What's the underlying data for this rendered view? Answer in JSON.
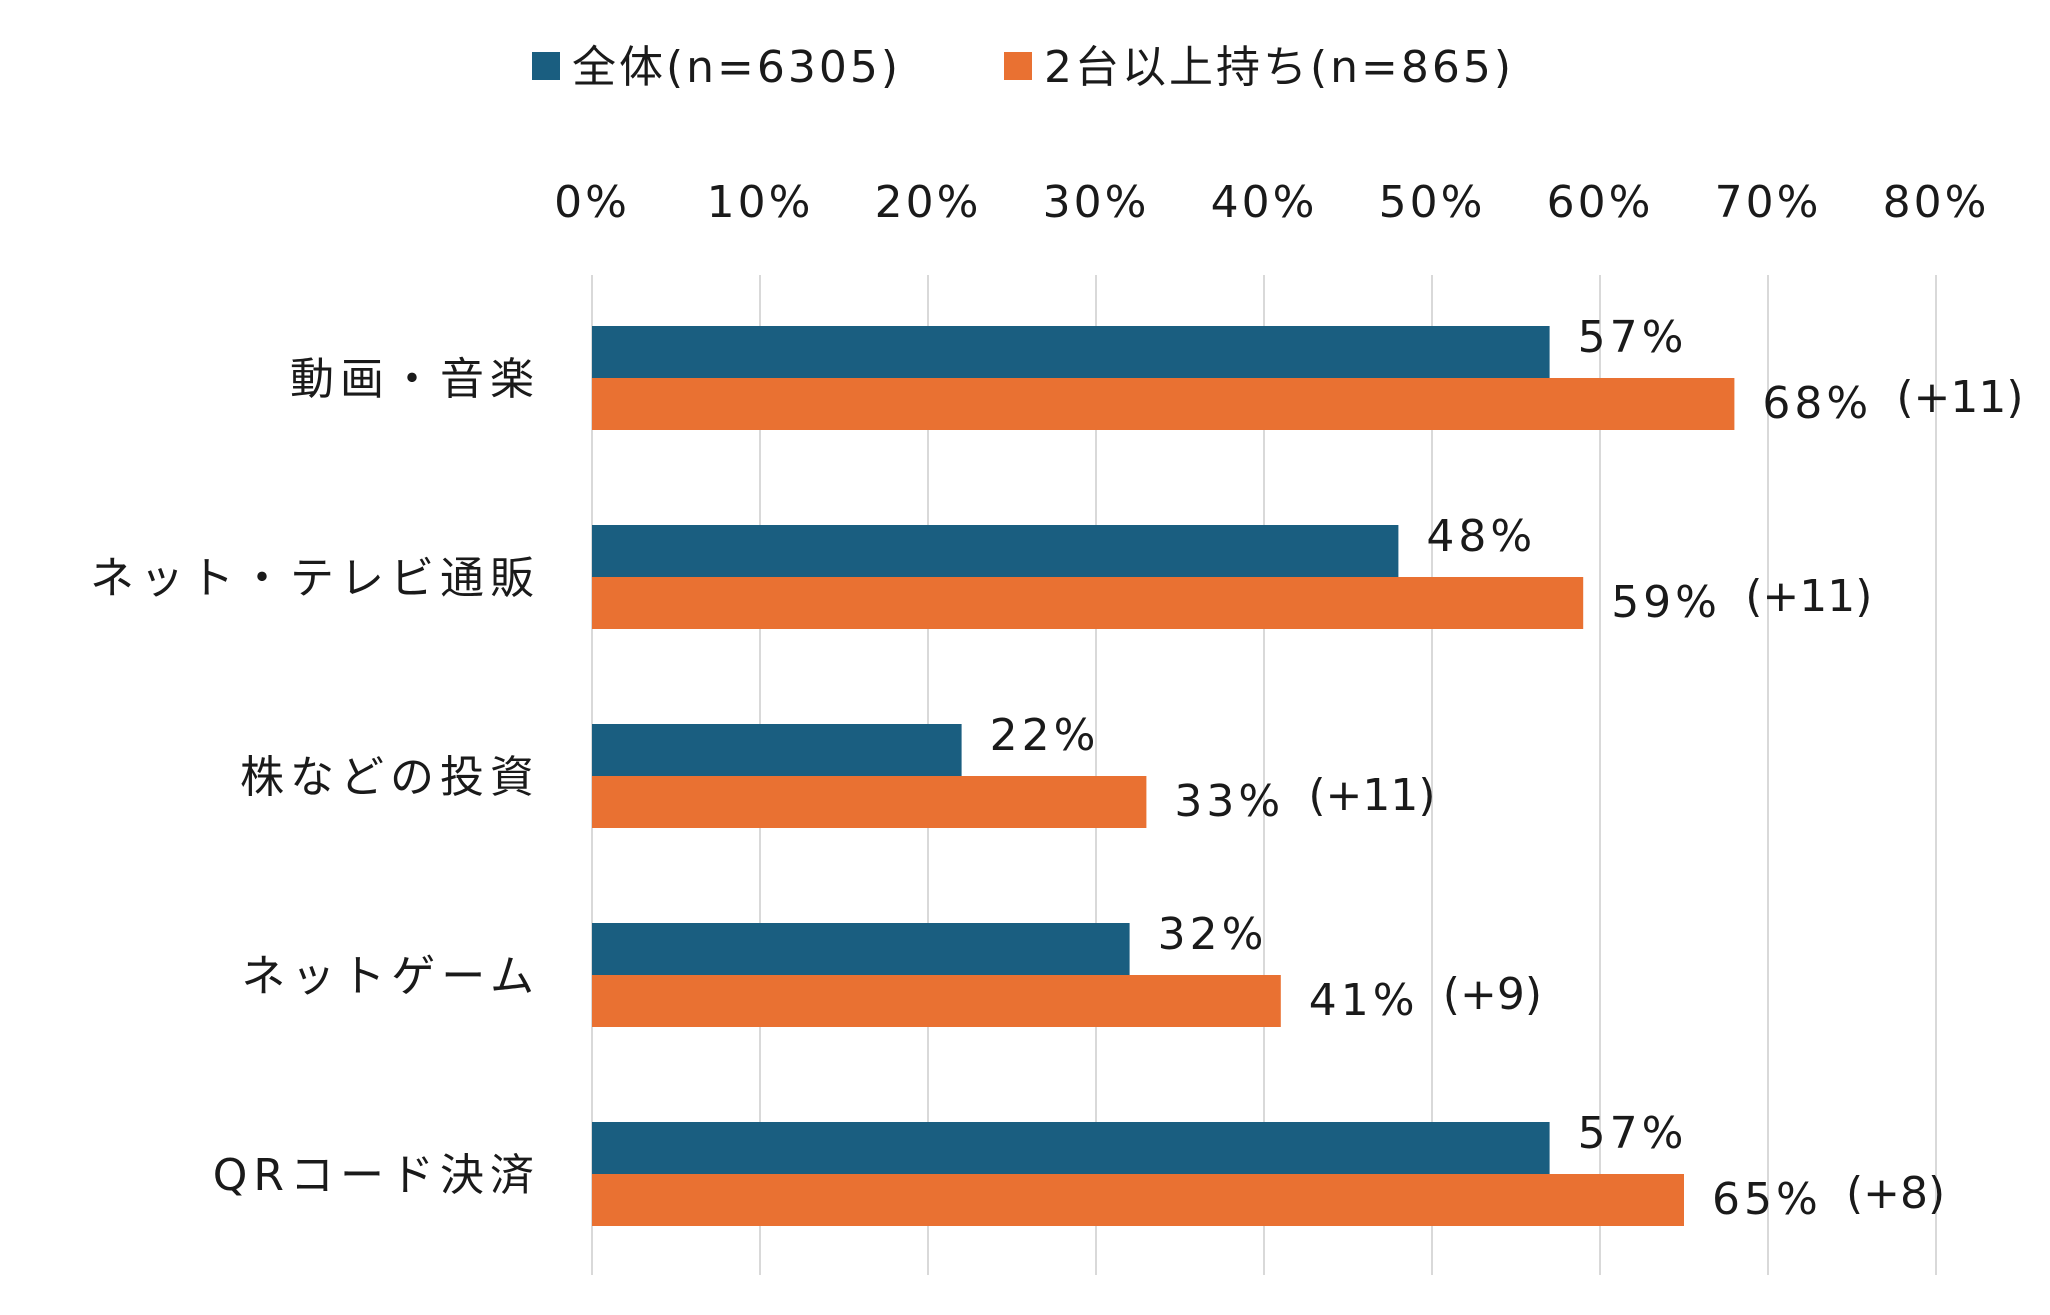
{
  "chart_data": {
    "type": "bar",
    "orientation": "horizontal",
    "categories": [
      "動画・音楽",
      "ネット・テレビ通販",
      "株などの投資",
      "ネットゲーム",
      "QRコード決済"
    ],
    "series": [
      {
        "name": "全体(n=6305)",
        "color": "#1a5e80",
        "values": [
          57,
          48,
          22,
          32,
          57
        ]
      },
      {
        "name": "2台以上持ち(n=865)",
        "color": "#e97132",
        "values": [
          68,
          59,
          33,
          41,
          65
        ]
      }
    ],
    "data_labels": {
      "series_0": [
        "57%",
        "48%",
        "22%",
        "32%",
        "57%"
      ],
      "series_1": [
        "68%",
        "59%",
        "33%",
        "41%",
        "65%"
      ]
    },
    "diff_labels": [
      "(+11)",
      "(+11)",
      "(+11)",
      "(+9)",
      "(+8)"
    ],
    "x_ticks": [
      "0%",
      "10%",
      "20%",
      "30%",
      "40%",
      "50%",
      "60%",
      "70%",
      "80%"
    ],
    "xlim": [
      0,
      80
    ],
    "x_axis_position": "top",
    "grid": true,
    "legend_position": "top",
    "title": "",
    "xlabel": "",
    "ylabel": ""
  }
}
